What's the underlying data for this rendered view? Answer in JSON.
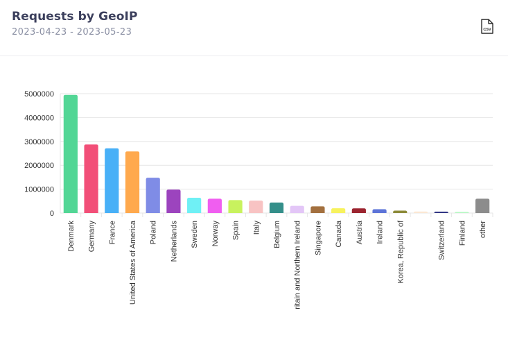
{
  "header": {
    "title": "Requests by GeoIP",
    "date_range": "2023-04-23 - 2023-05-23",
    "csv_label": "CSV"
  },
  "chart_data": {
    "type": "bar",
    "title": "",
    "xlabel": "",
    "ylabel": "",
    "ylim": [
      0,
      5000000
    ],
    "yticks": [
      0,
      1000000,
      2000000,
      3000000,
      4000000,
      5000000
    ],
    "ytick_labels": [
      "0",
      "1000000",
      "2000000",
      "3000000",
      "4000000",
      "5000000"
    ],
    "grid": true,
    "categories": [
      "Denmark",
      "Germany",
      "France",
      "United States of America",
      "Poland",
      "Netherlands",
      "Sweden",
      "Norway",
      "Spain",
      "Italy",
      "Belgium",
      "ritain and Northern Ireland",
      "Singapore",
      "Canada",
      "Austria",
      "Ireland",
      "Korea, Republic of",
      "",
      "Switzerland",
      "Finland",
      "other"
    ],
    "values": [
      4950000,
      2870000,
      2710000,
      2580000,
      1480000,
      980000,
      640000,
      600000,
      540000,
      520000,
      440000,
      300000,
      280000,
      200000,
      195000,
      160000,
      100000,
      60000,
      55000,
      40000,
      600000
    ],
    "colors": [
      "#52d695",
      "#f24f78",
      "#48b0f7",
      "#ffa94d",
      "#7f8ce6",
      "#9c44be",
      "#6ff0f5",
      "#f05ef0",
      "#c8f25e",
      "#f8c3c3",
      "#348f8a",
      "#e3c6f7",
      "#a3703f",
      "#f7f25e",
      "#9c2530",
      "#5d74d8",
      "#8c8a39",
      "#fbe7d3",
      "#2a2f80",
      "#b5f7c2",
      "#8c8c8c"
    ]
  }
}
